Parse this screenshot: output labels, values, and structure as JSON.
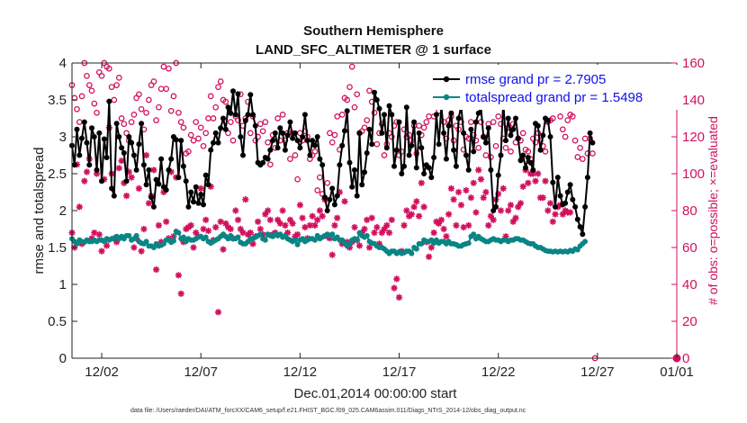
{
  "chart_data": {
    "type": "line",
    "title": "Southern Hemisphere",
    "subtitle": "LAND_SFC_ALTIMETER @ 1 surface",
    "xlabel": "Dec.01,2014 00:00:00 start",
    "ylabel": "rmse and totalspread",
    "ylabel_right": "# of obs: o=possible; ×=evaluated",
    "footer": "data file: /Users/raeder/DAI/ATM_forcXX/CAM6_setup/f.e21.FHIST_BGC.f09_025.CAM6assim.011/Diags_NTrS_2014-12/obs_diag_output.nc",
    "xlim": [
      0.5,
      31.0
    ],
    "ylim": [
      0,
      4
    ],
    "ylim_right": [
      0,
      160
    ],
    "x_ticks": [
      {
        "value": 2,
        "label": "12/02"
      },
      {
        "value": 7,
        "label": "12/07"
      },
      {
        "value": 12,
        "label": "12/12"
      },
      {
        "value": 17,
        "label": "12/17"
      },
      {
        "value": 22,
        "label": "12/22"
      },
      {
        "value": 27,
        "label": "12/27"
      },
      {
        "value": 31,
        "label": "01/01"
      }
    ],
    "y_ticks": [
      "0",
      "0.5",
      "1",
      "1.5",
      "2",
      "2.5",
      "3",
      "3.5",
      "4"
    ],
    "y_ticks_right": [
      "0",
      "20",
      "40",
      "60",
      "80",
      "100",
      "120",
      "140",
      "160"
    ],
    "legend": {
      "position": "top-right",
      "entries": [
        "rmse grand pr = 2.7905",
        "totalspread grand pr = 1.5498"
      ]
    },
    "colors": {
      "rmse": "#000000",
      "spread": "#0a8585",
      "obs": "#d1105e",
      "legend_text": "#1010ee"
    },
    "series": [
      {
        "name": "rmse",
        "start": 0.5,
        "step": 0.125,
        "values": [
          2.88,
          2.62,
          3.1,
          2.75,
          2.98,
          3.2,
          2.92,
          2.62,
          3.12,
          3.0,
          2.55,
          3.05,
          2.4,
          2.97,
          2.72,
          3.48,
          2.3,
          2.2,
          3.18,
          3.0,
          2.85,
          2.78,
          2.4,
          3.0,
          2.92,
          2.75,
          2.55,
          2.9,
          3.18,
          2.62,
          2.35,
          2.55,
          2.18,
          2.05,
          2.42,
          2.36,
          2.7,
          2.32,
          2.28,
          2.55,
          2.7,
          3.0,
          2.96,
          2.45,
          2.95,
          2.6,
          2.4,
          2.05,
          2.25,
          2.12,
          2.32,
          2.1,
          2.22,
          2.08,
          2.48,
          2.35,
          2.82,
          2.92,
          3.05,
          2.92,
          3.12,
          3.25,
          3.1,
          3.4,
          3.32,
          3.62,
          3.3,
          3.58,
          3.0,
          2.75,
          3.22,
          3.3,
          3.57,
          3.3,
          3.15,
          2.65,
          2.62,
          2.65,
          2.72,
          2.7,
          2.82,
          2.95,
          3.05,
          2.85,
          3.12,
          3.05,
          2.82,
          3.02,
          3.2,
          2.98,
          3.05,
          2.95,
          2.85,
          3.0,
          3.3,
          2.95,
          2.75,
          2.95,
          2.88,
          3.0,
          2.7,
          2.62,
          2.18,
          2.0,
          2.15,
          2.3,
          2.08,
          2.2,
          2.62,
          2.88,
          3.08,
          3.35,
          2.65,
          2.32,
          2.55,
          2.2,
          3.05,
          2.35,
          2.52,
          2.78,
          3.1,
          2.9,
          3.6,
          3.5,
          3.38,
          3.05,
          3.3,
          2.85,
          3.42,
          3.3,
          2.6,
          2.82,
          3.2,
          2.5,
          2.6,
          3.4,
          2.75,
          2.88,
          3.2,
          2.58,
          3.05,
          2.85,
          2.5,
          2.62,
          2.58,
          2.45,
          2.72,
          3.3,
          2.9,
          3.42,
          3.05,
          2.7,
          3.15,
          3.32,
          2.82,
          2.6,
          3.25,
          3.42,
          3.05,
          2.75,
          2.55,
          3.1,
          2.8,
          3.2,
          3.32,
          3.4,
          3.0,
          2.92,
          3.12,
          2.55,
          2.0,
          2.05,
          2.48,
          2.75,
          3.48,
          2.95,
          3.25,
          3.02,
          3.1,
          3.25,
          2.98,
          2.68,
          2.75,
          2.58,
          2.72,
          2.65,
          2.55,
          3.18,
          3.15,
          2.82,
          3.02,
          3.25,
          3.22,
          3.0,
          2.38,
          2.05,
          2.45,
          2.2,
          2.08,
          2.1,
          2.25,
          2.35,
          2.15,
          2.05,
          1.88,
          1.78,
          1.68,
          2.05,
          2.45,
          3.05,
          2.92
        ]
      },
      {
        "name": "totalspread",
        "start": 0.5,
        "step": 0.125,
        "values": [
          1.62,
          1.58,
          1.55,
          1.6,
          1.58,
          1.57,
          1.6,
          1.58,
          1.58,
          1.6,
          1.58,
          1.6,
          1.6,
          1.58,
          1.62,
          1.6,
          1.62,
          1.62,
          1.65,
          1.62,
          1.65,
          1.62,
          1.66,
          1.66,
          1.6,
          1.62,
          1.66,
          1.58,
          1.56,
          1.55,
          1.58,
          1.52,
          1.52,
          1.5,
          1.55,
          1.52,
          1.53,
          1.55,
          1.6,
          1.6,
          1.57,
          1.59,
          1.72,
          1.7,
          1.62,
          1.64,
          1.58,
          1.62,
          1.6,
          1.6,
          1.62,
          1.64,
          1.65,
          1.62,
          1.64,
          1.58,
          1.56,
          1.58,
          1.6,
          1.62,
          1.65,
          1.68,
          1.65,
          1.62,
          1.66,
          1.62,
          1.62,
          1.64,
          1.57,
          1.55,
          1.55,
          1.58,
          1.62,
          1.62,
          1.64,
          1.66,
          1.68,
          1.62,
          1.6,
          1.68,
          1.66,
          1.65,
          1.68,
          1.66,
          1.68,
          1.64,
          1.66,
          1.62,
          1.6,
          1.58,
          1.6,
          1.54,
          1.6,
          1.62,
          1.58,
          1.6,
          1.62,
          1.62,
          1.6,
          1.66,
          1.62,
          1.64,
          1.66,
          1.68,
          1.66,
          1.68,
          1.62,
          1.64,
          1.6,
          1.6,
          1.56,
          1.52,
          1.55,
          1.6,
          1.62,
          1.6,
          1.7,
          1.66,
          1.64,
          1.66,
          1.58,
          1.56,
          1.55,
          1.52,
          1.5,
          1.5,
          1.48,
          1.45,
          1.42,
          1.45,
          1.45,
          1.42,
          1.44,
          1.42,
          1.43,
          1.45,
          1.45,
          1.42,
          1.5,
          1.48,
          1.55,
          1.55,
          1.6,
          1.58,
          1.58,
          1.6,
          1.56,
          1.6,
          1.56,
          1.58,
          1.58,
          1.55,
          1.58,
          1.55,
          1.55,
          1.54,
          1.52,
          1.52,
          1.54,
          1.55,
          1.56,
          1.65,
          1.68,
          1.62,
          1.65,
          1.62,
          1.6,
          1.58,
          1.58,
          1.6,
          1.62,
          1.6,
          1.6,
          1.58,
          1.6,
          1.6,
          1.58,
          1.6,
          1.6,
          1.62,
          1.62,
          1.6,
          1.6,
          1.58,
          1.56,
          1.55,
          1.55,
          1.52,
          1.5,
          1.5,
          1.48,
          1.46,
          1.45,
          1.45,
          1.44,
          1.45,
          1.44,
          1.45,
          1.44,
          1.45,
          1.44,
          1.46,
          1.45,
          1.48,
          1.47,
          1.52,
          1.55,
          1.58
        ]
      },
      {
        "name": "obs_possible",
        "start": 0.5,
        "step": 0.125,
        "values": [
          148,
          141,
          135,
          128,
          142,
          160,
          153,
          148,
          145,
          138,
          133,
          155,
          153,
          160,
          158,
          157,
          147,
          140,
          148,
          152,
          130,
          127,
          122,
          118,
          128,
          132,
          141,
          143,
          135,
          124,
          133,
          140,
          148,
          150,
          129,
          136,
          146,
          158,
          146,
          157,
          134,
          142,
          160,
          133,
          128,
          125,
          111,
          112,
          121,
          118,
          128,
          119,
          125,
          115,
          122,
          130,
          142,
          130,
          136,
          147,
          150,
          140,
          139,
          122,
          128,
          118,
          131,
          129,
          143,
          126,
          130,
          139,
          122,
          131,
          118,
          120,
          127,
          123,
          128,
          117,
          105,
          121,
          114,
          130,
          118,
          132,
          118,
          122,
          108,
          122,
          110,
          97,
          122,
          118,
          123,
          120,
          108,
          110,
          112,
          91,
          98,
          89,
          87,
          95,
          122,
          117,
          121,
          131,
          113,
          132,
          141,
          140,
          147,
          158,
          136,
          143,
          122,
          123,
          125,
          129,
          145,
          139,
          133,
          116,
          122,
          127,
          110,
          116,
          122,
          120,
          126,
          128,
          110,
          112,
          124,
          120,
          121,
          118,
          126,
          111,
          126,
          121,
          125,
          128,
          131,
          139,
          131,
          137,
          134,
          136,
          128,
          119,
          129,
          131,
          118,
          126,
          124,
          128,
          113,
          120,
          119,
          128,
          121,
          118,
          114,
          128,
          120,
          110,
          127,
          109,
          128,
          115,
          131,
          127,
          119,
          114,
          125,
          112,
          127,
          117,
          119,
          118,
          122,
          113,
          112,
          108,
          119,
          117,
          122,
          118,
          115,
          112,
          128,
          129,
          130,
          141,
          137,
          131,
          124,
          120,
          129,
          132,
          131,
          118,
          109,
          114,
          108,
          119,
          111,
          119,
          111,
          0
        ]
      },
      {
        "name": "obs_evaluated",
        "start": 0.5,
        "step": 0.125,
        "values": [
          68,
          60,
          105,
          82,
          62,
          96,
          101,
          108,
          65,
          68,
          100,
          67,
          58,
          97,
          61,
          125,
          100,
          65,
          63,
          103,
          107,
          95,
          88,
          101,
          98,
          60,
          65,
          92,
          58,
          70,
          110,
          84,
          88,
          102,
          48,
          72,
          63,
          90,
          74,
          65,
          101,
          66,
          98,
          45,
          35,
          63,
          70,
          71,
          72,
          60,
          68,
          66,
          92,
          70,
          75,
          69,
          93,
          64,
          71,
          25,
          74,
          59,
          73,
          71,
          70,
          65,
          80,
          75,
          70,
          68,
          86,
          67,
          68,
          62,
          66,
          74,
          70,
          67,
          78,
          80,
          75,
          67,
          68,
          75,
          73,
          80,
          72,
          68,
          75,
          73,
          66,
          67,
          83,
          76,
          71,
          65,
          72,
          77,
          72,
          75,
          80,
          77,
          86,
          66,
          65,
          56,
          72,
          76,
          90,
          62,
          85,
          63,
          60,
          63,
          71,
          64,
          61,
          68,
          70,
          75,
          60,
          76,
          68,
          71,
          62,
          68,
          70,
          72,
          68,
          75,
          38,
          43,
          33,
          58,
          72,
          80,
          77,
          78,
          82,
          85,
          77,
          95,
          82,
          63,
          55,
          60,
          68,
          74,
          73,
          75,
          70,
          66,
          78,
          92,
          86,
          72,
          90,
          83,
          71,
          91,
          72,
          87,
          95,
          79,
          102,
          97,
          87,
          90,
          72,
          77,
          75,
          86,
          89,
          80,
          92,
          66,
          80,
          83,
          74,
          76,
          82,
          84,
          93,
          102,
          95,
          100,
          100,
          96,
          100,
          87,
          87,
          96,
          80,
          84,
          74,
          78,
          82,
          83,
          78,
          80,
          79,
          79
        ]
      }
    ]
  }
}
